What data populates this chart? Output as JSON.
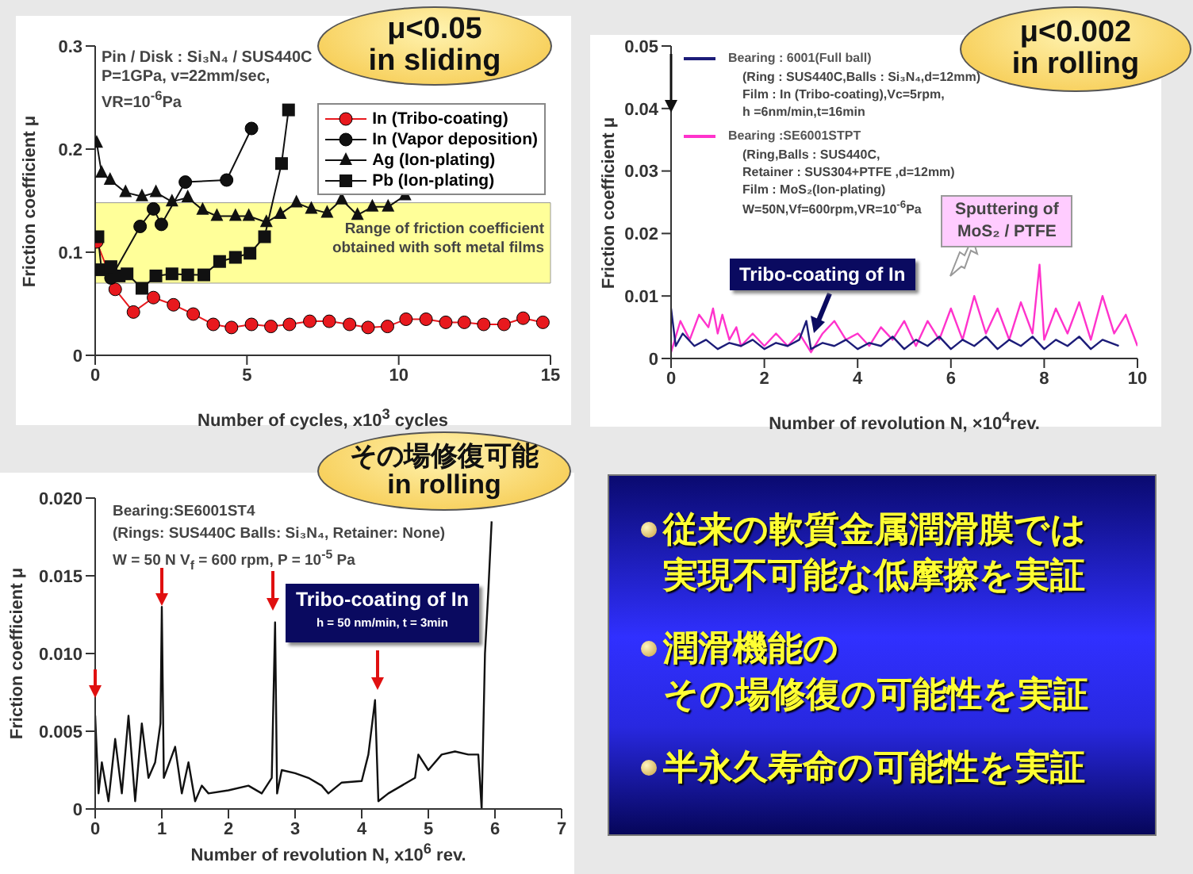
{
  "chart_data": [
    {
      "type": "line",
      "xlabel": "Number of cycles, x10$^{3}$ cycles",
      "ylabel": "Friction coefficient μ",
      "xlim": [
        0,
        15
      ],
      "xticks": [
        0,
        5,
        10,
        15
      ],
      "ylim": [
        0,
        0.3
      ],
      "yticks": [
        0,
        0.1,
        0.2,
        0.3
      ],
      "legend": "top right",
      "bands": [
        {
          "axis": "y",
          "from": 0.07,
          "to": 0.148,
          "label": "Range of friction coefficient obtained with soft metal films",
          "color": "#ffff99"
        }
      ],
      "annotations": [
        "Pin / Disk : Si₃N₄ / SUS440C",
        "P=1GPa, v=22mm/sec,",
        "VR=10$^{-6}$Pa",
        "μ<0.05\nin sliding"
      ],
      "series": [
        {
          "name": "In (Tribo-coating)",
          "color": "#e8191e",
          "marker": "circle",
          "x": [
            0.05,
            0.66,
            1.26,
            1.92,
            2.58,
            3.23,
            3.89,
            4.49,
            5.15,
            5.79,
            6.4,
            7.07,
            7.71,
            8.38,
            8.99,
            9.63,
            10.24,
            10.9,
            11.55,
            12.16,
            12.8,
            13.47,
            14.1,
            14.75
          ],
          "values": [
            0.11,
            0.064,
            0.042,
            0.056,
            0.049,
            0.04,
            0.03,
            0.027,
            0.03,
            0.028,
            0.03,
            0.033,
            0.033,
            0.03,
            0.027,
            0.028,
            0.035,
            0.035,
            0.032,
            0.032,
            0.03,
            0.03,
            0.036,
            0.032
          ]
        },
        {
          "name": "In (Vapor deposition)",
          "color": "#111111",
          "marker": "circle",
          "x": [
            0.52,
            1.48,
            1.92,
            2.18,
            2.97,
            4.33,
            5.15
          ],
          "values": [
            0.075,
            0.125,
            0.142,
            0.127,
            0.168,
            0.17,
            0.22
          ]
        },
        {
          "name": "Ag (Ion-plating)",
          "color": "#111111",
          "marker": "triangle",
          "x": [
            0.05,
            0.21,
            0.49,
            1.0,
            1.54,
            2.0,
            2.53,
            3.05,
            3.54,
            4.01,
            4.62,
            5.06,
            5.64,
            6.1,
            6.63,
            7.12,
            7.64,
            8.12,
            8.64,
            9.13,
            9.65,
            10.21
          ],
          "values": [
            0.206,
            0.177,
            0.17,
            0.158,
            0.154,
            0.158,
            0.149,
            0.153,
            0.141,
            0.135,
            0.135,
            0.135,
            0.129,
            0.137,
            0.148,
            0.142,
            0.138,
            0.151,
            0.136,
            0.144,
            0.144,
            0.155
          ]
        },
        {
          "name": "Pb (Ion-plating)",
          "color": "#111111",
          "marker": "square",
          "x": [
            0.09,
            0.21,
            0.52,
            0.79,
            1.05,
            1.54,
            2.0,
            2.53,
            3.05,
            3.58,
            4.1,
            4.62,
            5.1,
            5.58,
            6.14,
            6.37
          ],
          "values": [
            0.115,
            0.083,
            0.086,
            0.077,
            0.079,
            0.065,
            0.077,
            0.079,
            0.078,
            0.078,
            0.091,
            0.095,
            0.099,
            0.115,
            0.186,
            0.238
          ]
        }
      ]
    },
    {
      "type": "line",
      "xlabel": "Number of revolution N, ×10$^{4}$rev.",
      "ylabel": "Friction coefficient μ",
      "xlim": [
        0,
        10
      ],
      "xticks": [
        0,
        2,
        4,
        6,
        8,
        10
      ],
      "ylim": [
        0,
        0.05
      ],
      "yticks": [
        0,
        0.01,
        0.02,
        0.03,
        0.04,
        0.05
      ],
      "legend": "top left",
      "annotations": [
        "(Ring : SUS440C,Balls : Si₃N₄,d=12mm)",
        "Film : In (Tribo-coating),Vc=5rpm,",
        "h =6nm/min,t=16min",
        "(Ring,Balls : SUS440C,",
        "Retainer : SUS304+PTFE ,d=12mm)",
        "Film : MoS₂(Ion-plating)",
        "W=50N,Vf=600rpm,VR=10$^{-6}$Pa",
        "Tribo-coating of In",
        "Sputtering of\nMoS₂ / PTFE",
        "μ<0.002\nin rolling"
      ],
      "series": [
        {
          "name": "Bearing : 6001(Full ball)",
          "color": "#1c1c78",
          "x": [
            0,
            0.1,
            0.25,
            0.5,
            0.75,
            1,
            1.25,
            1.5,
            1.75,
            2,
            2.25,
            2.5,
            2.75,
            2.9,
            3,
            3.25,
            3.5,
            3.75,
            4,
            4.25,
            4.5,
            4.75,
            5,
            5.25,
            5.5,
            5.75,
            6,
            6.25,
            6.5,
            6.75,
            7,
            7.25,
            7.5,
            7.75,
            8,
            8.25,
            8.5,
            8.75,
            9,
            9.25,
            9.6
          ],
          "values": [
            0.008,
            0.002,
            0.004,
            0.002,
            0.003,
            0.0015,
            0.0025,
            0.002,
            0.003,
            0.0015,
            0.0025,
            0.002,
            0.003,
            0.006,
            0.0015,
            0.0025,
            0.002,
            0.003,
            0.0015,
            0.0025,
            0.002,
            0.0035,
            0.0015,
            0.003,
            0.002,
            0.0035,
            0.0015,
            0.003,
            0.002,
            0.0035,
            0.0015,
            0.003,
            0.002,
            0.0035,
            0.0015,
            0.003,
            0.002,
            0.0035,
            0.0015,
            0.003,
            0.002
          ]
        },
        {
          "name": "Bearing :SE6001STPT",
          "color": "#ff33cc",
          "x": [
            0,
            0.2,
            0.4,
            0.6,
            0.8,
            0.9,
            1.0,
            1.1,
            1.25,
            1.4,
            1.5,
            1.75,
            2,
            2.25,
            2.5,
            2.75,
            3,
            3.25,
            3.5,
            3.75,
            4,
            4.25,
            4.5,
            4.75,
            5,
            5.25,
            5.5,
            5.75,
            6,
            6.25,
            6.5,
            6.75,
            7,
            7.25,
            7.5,
            7.75,
            7.9,
            8,
            8.25,
            8.5,
            8.75,
            9,
            9.25,
            9.5,
            9.75,
            10
          ],
          "values": [
            0.001,
            0.006,
            0.003,
            0.007,
            0.005,
            0.008,
            0.004,
            0.007,
            0.003,
            0.005,
            0.002,
            0.004,
            0.002,
            0.004,
            0.002,
            0.004,
            0.001,
            0.004,
            0.006,
            0.003,
            0.004,
            0.002,
            0.005,
            0.003,
            0.006,
            0.002,
            0.006,
            0.003,
            0.008,
            0.003,
            0.01,
            0.004,
            0.008,
            0.003,
            0.009,
            0.004,
            0.015,
            0.003,
            0.008,
            0.004,
            0.009,
            0.003,
            0.01,
            0.004,
            0.007,
            0.002
          ]
        }
      ]
    },
    {
      "type": "line",
      "xlabel": "Number of revolution N, x10$^{6}$ rev.",
      "ylabel": "Friction coefficient μ",
      "xlim": [
        0,
        7
      ],
      "xticks": [
        0,
        1,
        2,
        3,
        4,
        5,
        6,
        7
      ],
      "ylim": [
        0,
        0.02
      ],
      "yticks": [
        0,
        0.005,
        {
          "value": 0.01,
          "label": "0.010"
        },
        0.015,
        {
          "value": 0.02,
          "label": "0.020"
        }
      ],
      "annotations": [
        "Bearing:SE6001ST4",
        "(Rings: SUS440C Balls: Si₃N₄, Retainer: None)",
        "W = 50 N V$_{f}$ = 600 rpm, P = 10$^{-5}$ Pa",
        "Tribo-coating of In",
        "h = 50 nm/min, t = 3min",
        "その場修復可能\nin rolling"
      ],
      "series": [
        {
          "color": "#111111",
          "x": [
            0,
            0.05,
            0.1,
            0.2,
            0.3,
            0.4,
            0.5,
            0.6,
            0.7,
            0.8,
            0.9,
            0.98,
            1.0,
            1.03,
            1.2,
            1.3,
            1.4,
            1.5,
            1.6,
            1.7,
            2.0,
            2.3,
            2.5,
            2.65,
            2.7,
            2.73,
            2.8,
            3.0,
            3.2,
            3.4,
            3.5,
            3.7,
            4.0,
            4.1,
            4.2,
            4.25,
            4.4,
            4.6,
            4.8,
            4.85,
            5.0,
            5.2,
            5.4,
            5.6,
            5.75,
            5.8,
            5.85,
            5.9,
            5.95
          ],
          "values": [
            0.006,
            0.001,
            0.003,
            0.0005,
            0.0045,
            0.001,
            0.006,
            0.0005,
            0.0055,
            0.002,
            0.003,
            0.0055,
            0.013,
            0.002,
            0.004,
            0.001,
            0.003,
            0.0005,
            0.0015,
            0.001,
            0.0012,
            0.0015,
            0.001,
            0.002,
            0.012,
            0.001,
            0.0025,
            0.0023,
            0.002,
            0.0015,
            0.001,
            0.0017,
            0.0018,
            0.0035,
            0.007,
            0.0005,
            0.001,
            0.0015,
            0.002,
            0.0035,
            0.0025,
            0.0035,
            0.0037,
            0.0035,
            0.0035,
            0,
            0.01,
            0.014,
            0.0185
          ]
        }
      ]
    },
    {
      "type": "other",
      "annotations": [
        "従来の軟質金属潤滑膜では実現不可能な低摩擦を実証",
        "潤滑機能の",
        "その場修復の可能性を実証",
        "半永久寿命の可能性を実証"
      ]
    }
  ]
}
